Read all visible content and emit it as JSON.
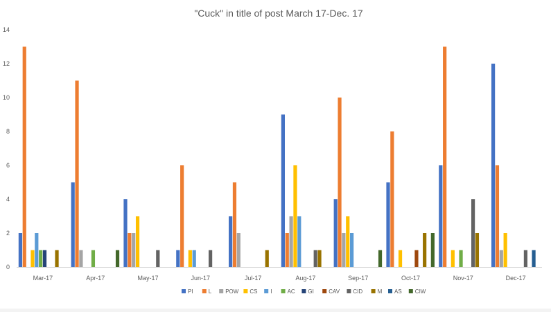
{
  "chart_data": {
    "type": "bar",
    "title": "\"Cuck\" in title of post March 17-Dec. 17",
    "xlabel": "",
    "ylabel": "",
    "ylim": [
      0,
      14
    ],
    "yticks": [
      "0",
      "2",
      "4",
      "6",
      "8",
      "10",
      "12",
      "14"
    ],
    "grid": false,
    "legend_position": "bottom",
    "categories": [
      "Mar-17",
      "Apr-17",
      "May-17",
      "Jun-17",
      "Jul-17",
      "Aug-17",
      "Sep-17",
      "Oct-17",
      "Nov-17",
      "Dec-17"
    ],
    "series": [
      {
        "name": "PI",
        "color": "#4472C4",
        "values": [
          2,
          5,
          4,
          1,
          3,
          9,
          4,
          5,
          6,
          12
        ]
      },
      {
        "name": "L",
        "color": "#ED7D31",
        "values": [
          13,
          11,
          2,
          6,
          5,
          2,
          10,
          8,
          13,
          6
        ]
      },
      {
        "name": "POW",
        "color": "#A5A5A5",
        "values": [
          0,
          1,
          2,
          0,
          2,
          3,
          2,
          0,
          0,
          1
        ]
      },
      {
        "name": "CS",
        "color": "#FFC000",
        "values": [
          1,
          0,
          3,
          1,
          0,
          6,
          3,
          1,
          1,
          2
        ]
      },
      {
        "name": "I",
        "color": "#5B9BD5",
        "values": [
          2,
          0,
          0,
          1,
          0,
          3,
          2,
          0,
          0,
          0
        ]
      },
      {
        "name": "AC",
        "color": "#70AD47",
        "values": [
          1,
          1,
          0,
          0,
          0,
          0,
          0,
          0,
          1,
          0
        ]
      },
      {
        "name": "GI",
        "color": "#264478",
        "values": [
          1,
          0,
          0,
          0,
          0,
          0,
          0,
          0,
          0,
          0
        ]
      },
      {
        "name": "CAV",
        "color": "#9E480E",
        "values": [
          0,
          0,
          0,
          0,
          0,
          0,
          0,
          1,
          0,
          0
        ]
      },
      {
        "name": "CID",
        "color": "#636363",
        "values": [
          0,
          0,
          1,
          1,
          0,
          1,
          0,
          0,
          4,
          1
        ]
      },
      {
        "name": "M",
        "color": "#997300",
        "values": [
          1,
          0,
          0,
          0,
          1,
          1,
          0,
          2,
          2,
          0
        ]
      },
      {
        "name": "AS",
        "color": "#255E91",
        "values": [
          0,
          0,
          0,
          0,
          0,
          0,
          0,
          0,
          0,
          1
        ]
      },
      {
        "name": "CIW",
        "color": "#43682B",
        "values": [
          0,
          1,
          0,
          0,
          0,
          0,
          1,
          2,
          0,
          0
        ]
      }
    ]
  }
}
